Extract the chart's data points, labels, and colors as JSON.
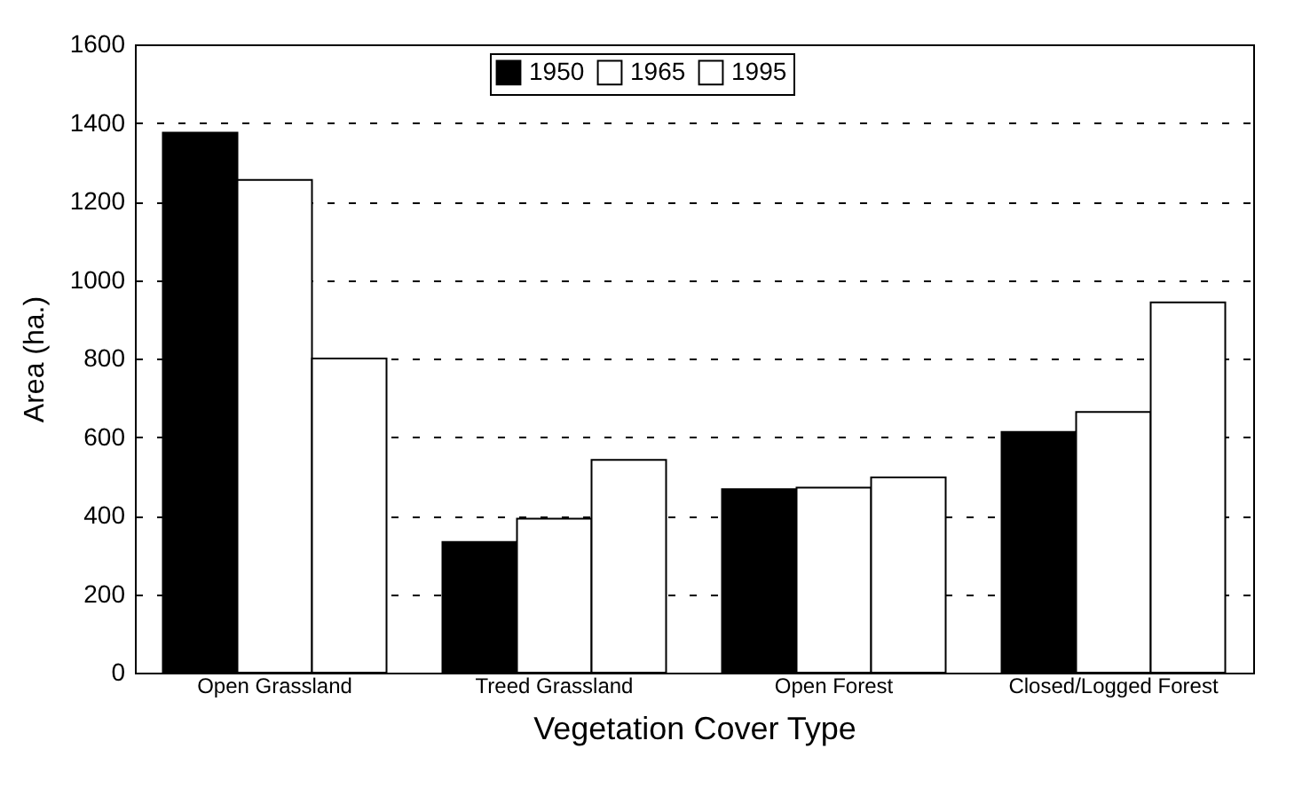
{
  "chart_data": {
    "type": "bar",
    "xlabel": "Vegetation Cover Type",
    "ylabel": "Area (ha.)",
    "categories": [
      "Open Grassland",
      "Treed Grassland",
      "Open Forest",
      "Closed/Logged Forest"
    ],
    "series": [
      {
        "name": "1950",
        "color": "#000000",
        "values": [
          1375,
          333,
          467,
          613
        ]
      },
      {
        "name": "1965",
        "color": "#ffffff",
        "values": [
          1255,
          392,
          471,
          664
        ]
      },
      {
        "name": "1995",
        "color": "#ffffff",
        "values": [
          800,
          542,
          497,
          943
        ]
      }
    ],
    "ylim": [
      0,
      1600
    ],
    "yticks": [
      0,
      200,
      400,
      600,
      800,
      1000,
      1200,
      1400,
      1600
    ],
    "grid": "y",
    "line_style": "dashed",
    "legend": "top"
  }
}
